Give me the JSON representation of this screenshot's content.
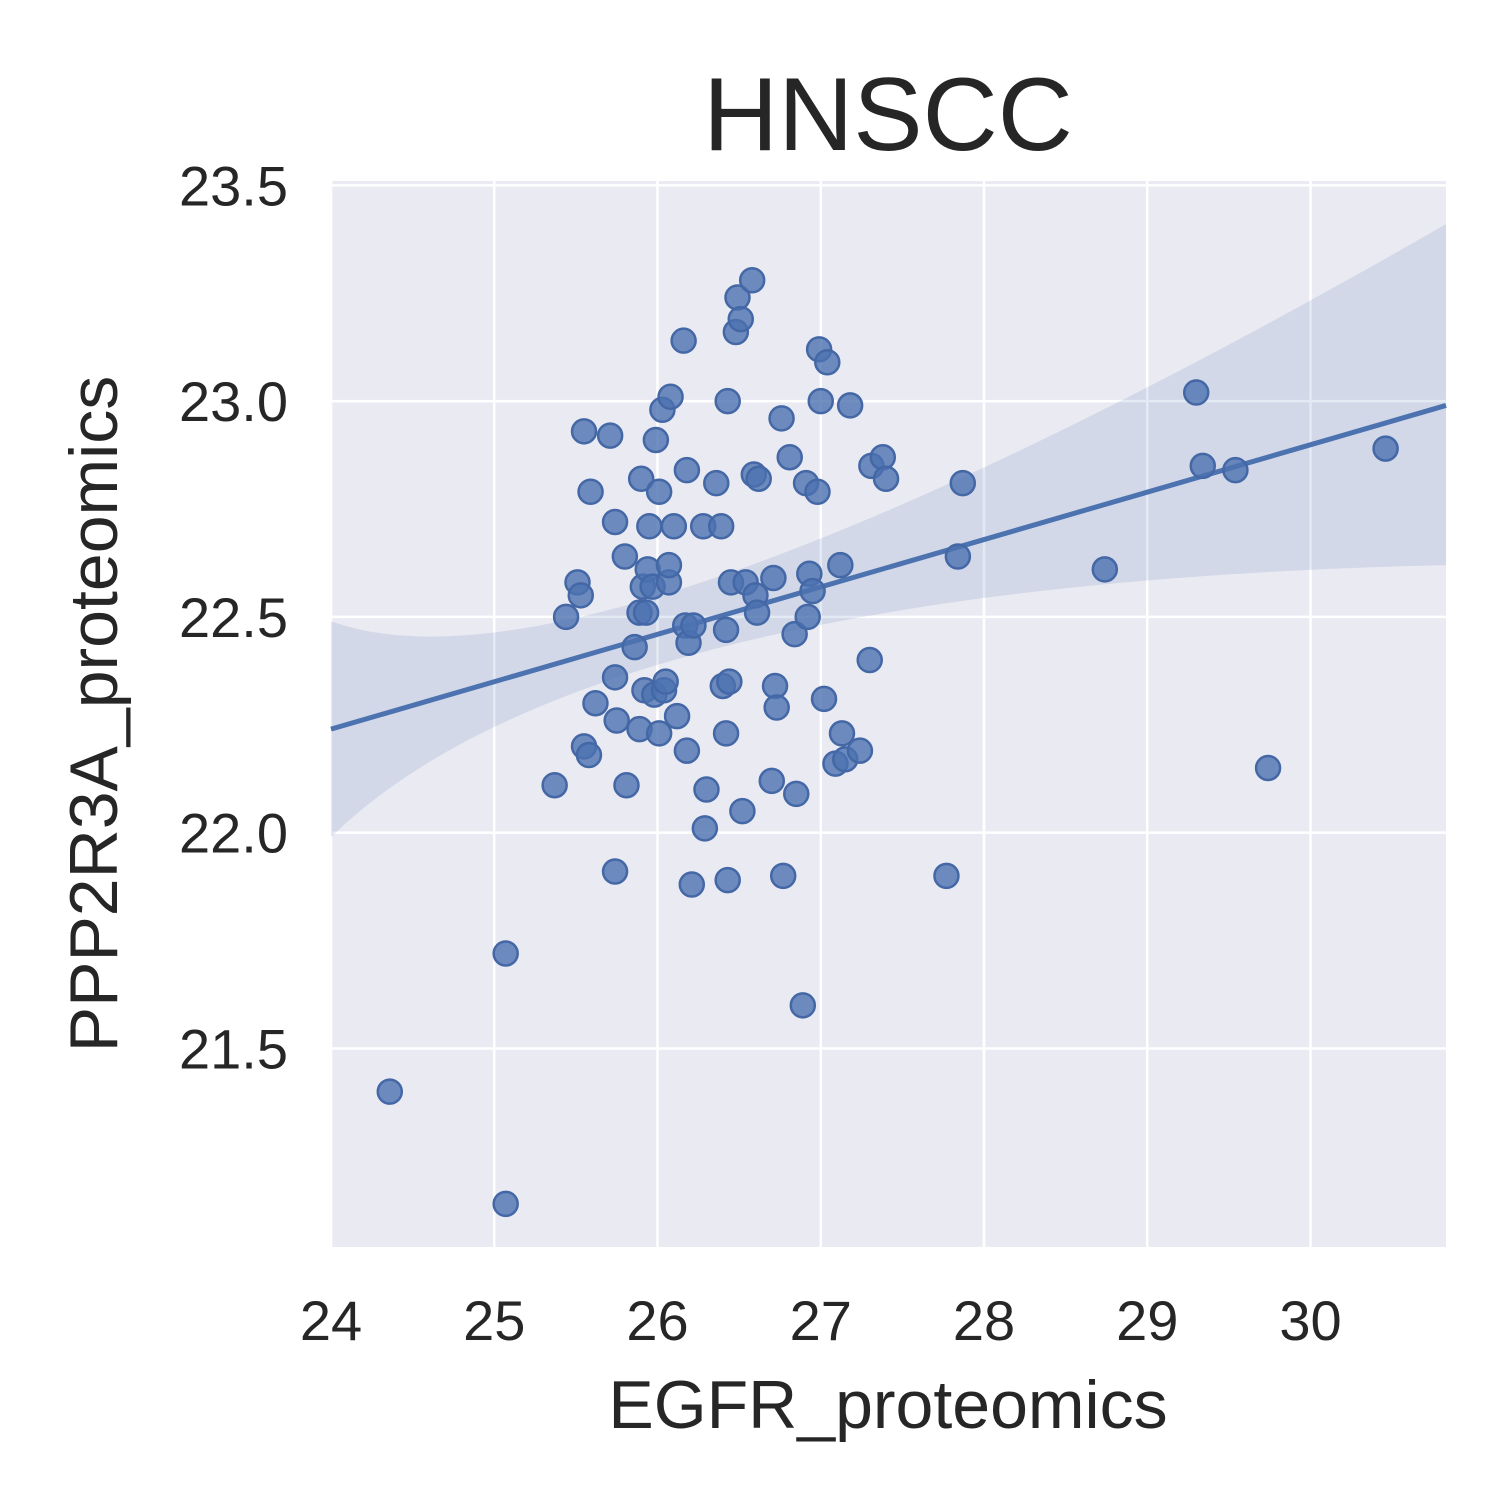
{
  "chart_data": {
    "type": "scatter",
    "title": "HNSCC",
    "xlabel": "EGFR_proteomics",
    "ylabel": "PPP2R3A_proteomics",
    "xlim": [
      24.0,
      30.83
    ],
    "ylim": [
      21.04,
      23.51
    ],
    "xticks": [
      {
        "value": 24,
        "label": "24"
      },
      {
        "value": 25,
        "label": "25"
      },
      {
        "value": 26,
        "label": "26"
      },
      {
        "value": 27,
        "label": "27"
      },
      {
        "value": 28,
        "label": "28"
      },
      {
        "value": 29,
        "label": "29"
      },
      {
        "value": 30,
        "label": "30"
      }
    ],
    "yticks": [
      {
        "value": 21.5,
        "label": "21.5"
      },
      {
        "value": 22.0,
        "label": "22.0"
      },
      {
        "value": 22.5,
        "label": "22.5"
      },
      {
        "value": 23.0,
        "label": "23.0"
      },
      {
        "value": 23.5,
        "label": "23.5"
      }
    ],
    "grid": true,
    "colors": {
      "background": "#eaeaf2",
      "grid": "#ffffff",
      "point": "#4c72b0",
      "point_edge": "#4467a6",
      "line": "#4c72b0",
      "text": "#262626"
    },
    "regression": {
      "x": [
        24.0,
        30.83
      ],
      "y": [
        22.24,
        22.99
      ],
      "ci_lower": [
        21.99,
        22.62
      ],
      "ci_upper": [
        22.49,
        23.41
      ],
      "ci_upper_mid": {
        "x": 26.5,
        "y": 22.61
      },
      "ci_lower_mid": {
        "x": 26.5,
        "y": 22.44
      }
    },
    "points": [
      {
        "x": 24.36,
        "y": 21.4
      },
      {
        "x": 25.07,
        "y": 21.14
      },
      {
        "x": 25.07,
        "y": 21.72
      },
      {
        "x": 25.37,
        "y": 22.11
      },
      {
        "x": 25.44,
        "y": 22.5
      },
      {
        "x": 25.51,
        "y": 22.58
      },
      {
        "x": 25.53,
        "y": 22.55
      },
      {
        "x": 25.55,
        "y": 22.93
      },
      {
        "x": 25.55,
        "y": 22.2
      },
      {
        "x": 25.58,
        "y": 22.18
      },
      {
        "x": 25.59,
        "y": 22.79
      },
      {
        "x": 25.62,
        "y": 22.3
      },
      {
        "x": 25.71,
        "y": 22.92
      },
      {
        "x": 25.74,
        "y": 22.72
      },
      {
        "x": 25.74,
        "y": 22.36
      },
      {
        "x": 25.74,
        "y": 21.91
      },
      {
        "x": 25.75,
        "y": 22.26
      },
      {
        "x": 25.8,
        "y": 22.64
      },
      {
        "x": 25.81,
        "y": 22.11
      },
      {
        "x": 25.86,
        "y": 22.43
      },
      {
        "x": 25.89,
        "y": 22.51
      },
      {
        "x": 25.89,
        "y": 22.24
      },
      {
        "x": 25.9,
        "y": 22.82
      },
      {
        "x": 25.91,
        "y": 22.57
      },
      {
        "x": 25.92,
        "y": 22.33
      },
      {
        "x": 25.93,
        "y": 22.51
      },
      {
        "x": 25.94,
        "y": 22.61
      },
      {
        "x": 25.95,
        "y": 22.71
      },
      {
        "x": 25.97,
        "y": 22.57
      },
      {
        "x": 25.98,
        "y": 22.32
      },
      {
        "x": 25.99,
        "y": 22.91
      },
      {
        "x": 26.01,
        "y": 22.79
      },
      {
        "x": 26.01,
        "y": 22.23
      },
      {
        "x": 26.03,
        "y": 22.98
      },
      {
        "x": 26.04,
        "y": 22.33
      },
      {
        "x": 26.05,
        "y": 22.35
      },
      {
        "x": 26.07,
        "y": 22.58
      },
      {
        "x": 26.07,
        "y": 22.62
      },
      {
        "x": 26.08,
        "y": 23.01
      },
      {
        "x": 26.1,
        "y": 22.71
      },
      {
        "x": 26.12,
        "y": 22.27
      },
      {
        "x": 26.16,
        "y": 23.14
      },
      {
        "x": 26.17,
        "y": 22.48
      },
      {
        "x": 26.18,
        "y": 22.84
      },
      {
        "x": 26.18,
        "y": 22.19
      },
      {
        "x": 26.19,
        "y": 22.44
      },
      {
        "x": 26.21,
        "y": 21.88
      },
      {
        "x": 26.22,
        "y": 22.48
      },
      {
        "x": 26.28,
        "y": 22.71
      },
      {
        "x": 26.29,
        "y": 22.01
      },
      {
        "x": 26.3,
        "y": 22.1
      },
      {
        "x": 26.36,
        "y": 22.81
      },
      {
        "x": 26.39,
        "y": 22.71
      },
      {
        "x": 26.4,
        "y": 22.34
      },
      {
        "x": 26.42,
        "y": 22.47
      },
      {
        "x": 26.42,
        "y": 22.23
      },
      {
        "x": 26.43,
        "y": 23.0
      },
      {
        "x": 26.43,
        "y": 21.89
      },
      {
        "x": 26.44,
        "y": 22.35
      },
      {
        "x": 26.45,
        "y": 22.58
      },
      {
        "x": 26.48,
        "y": 23.16
      },
      {
        "x": 26.49,
        "y": 23.24
      },
      {
        "x": 26.51,
        "y": 23.19
      },
      {
        "x": 26.52,
        "y": 22.05
      },
      {
        "x": 26.54,
        "y": 22.58
      },
      {
        "x": 26.58,
        "y": 23.28
      },
      {
        "x": 26.59,
        "y": 22.83
      },
      {
        "x": 26.6,
        "y": 22.55
      },
      {
        "x": 26.61,
        "y": 22.51
      },
      {
        "x": 26.62,
        "y": 22.82
      },
      {
        "x": 26.7,
        "y": 22.12
      },
      {
        "x": 26.71,
        "y": 22.59
      },
      {
        "x": 26.72,
        "y": 22.34
      },
      {
        "x": 26.73,
        "y": 22.29
      },
      {
        "x": 26.76,
        "y": 22.96
      },
      {
        "x": 26.77,
        "y": 21.9
      },
      {
        "x": 26.81,
        "y": 22.87
      },
      {
        "x": 26.84,
        "y": 22.46
      },
      {
        "x": 26.85,
        "y": 22.09
      },
      {
        "x": 26.89,
        "y": 21.6
      },
      {
        "x": 26.91,
        "y": 22.81
      },
      {
        "x": 26.92,
        "y": 22.5
      },
      {
        "x": 26.93,
        "y": 22.6
      },
      {
        "x": 26.95,
        "y": 22.56
      },
      {
        "x": 26.98,
        "y": 22.79
      },
      {
        "x": 26.99,
        "y": 23.12
      },
      {
        "x": 27.0,
        "y": 23.0
      },
      {
        "x": 27.02,
        "y": 22.31
      },
      {
        "x": 27.04,
        "y": 23.09
      },
      {
        "x": 27.09,
        "y": 22.16
      },
      {
        "x": 27.12,
        "y": 22.62
      },
      {
        "x": 27.13,
        "y": 22.23
      },
      {
        "x": 27.15,
        "y": 22.17
      },
      {
        "x": 27.18,
        "y": 22.99
      },
      {
        "x": 27.24,
        "y": 22.19
      },
      {
        "x": 27.3,
        "y": 22.4
      },
      {
        "x": 27.31,
        "y": 22.85
      },
      {
        "x": 27.38,
        "y": 22.87
      },
      {
        "x": 27.4,
        "y": 22.82
      },
      {
        "x": 27.77,
        "y": 21.9
      },
      {
        "x": 27.84,
        "y": 22.64
      },
      {
        "x": 27.87,
        "y": 22.81
      },
      {
        "x": 28.74,
        "y": 22.61
      },
      {
        "x": 29.3,
        "y": 23.02
      },
      {
        "x": 29.34,
        "y": 22.85
      },
      {
        "x": 29.54,
        "y": 22.84
      },
      {
        "x": 29.74,
        "y": 22.15
      },
      {
        "x": 30.46,
        "y": 22.89
      }
    ]
  }
}
